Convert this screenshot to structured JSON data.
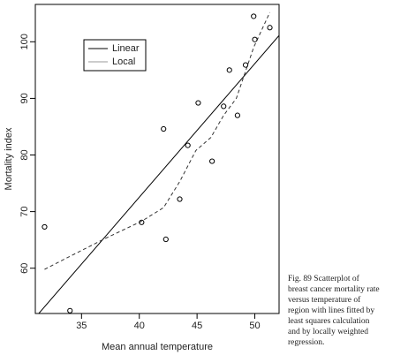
{
  "chart_data": {
    "type": "scatter",
    "xlabel": "Mean annual temperature",
    "ylabel": "Mortality index",
    "x": [
      51.3,
      49.9,
      50.0,
      49.2,
      48.5,
      47.8,
      47.3,
      45.1,
      46.3,
      42.1,
      44.2,
      43.5,
      42.3,
      40.2,
      31.8,
      34.0
    ],
    "values": [
      102.5,
      104.5,
      100.4,
      95.9,
      87.0,
      95.0,
      88.6,
      89.2,
      78.9,
      84.6,
      81.7,
      72.2,
      65.1,
      68.1,
      67.3,
      52.5
    ],
    "xlim": [
      31.0,
      52.1
    ],
    "ylim": [
      52.0,
      106.6
    ],
    "xticks": [
      35,
      40,
      45,
      50
    ],
    "yticks": [
      60,
      70,
      80,
      90,
      100
    ],
    "series": [
      {
        "name": "Linear",
        "color": "#000000",
        "dash": false,
        "x": [
          31.0,
          52.1
        ],
        "values": [
          51.3,
          101.1
        ]
      },
      {
        "name": "Local",
        "color": "#333333",
        "dash": true,
        "x": [
          31.8,
          34.0,
          37.0,
          40.2,
          42.1,
          43.5,
          44.9,
          46.2,
          47.3,
          48.4,
          49.9,
          51.3
        ],
        "values": [
          59.8,
          62.1,
          65.2,
          68.3,
          70.7,
          75.3,
          80.8,
          83.1,
          87.0,
          90.0,
          99.0,
          105.2
        ]
      }
    ]
  },
  "caption": [
    "Fig. 89    Scatterplot of",
    "breast cancer mortality rate",
    "versus temperature of",
    "region with lines fitted by",
    "least squares calculation",
    "and by locally weighted",
    "regression."
  ]
}
